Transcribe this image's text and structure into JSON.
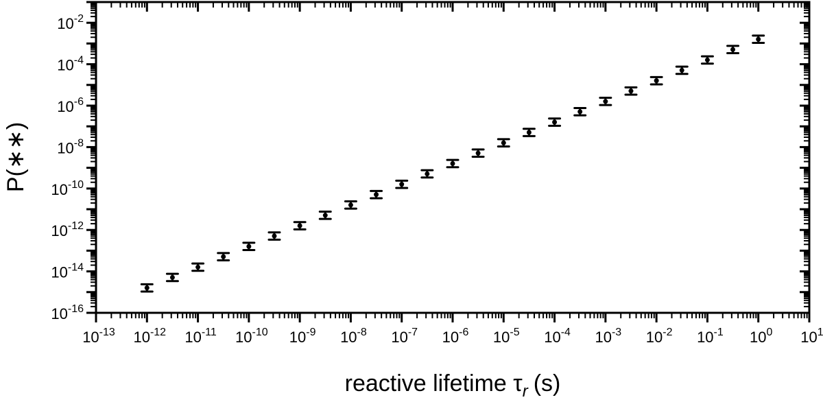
{
  "chart_data": {
    "type": "scatter",
    "xlabel": "reactive lifetime τ",
    "xlabel_subscript": "r",
    "xlabel_unit": "(s)",
    "ylabel": "P(∗∗)",
    "xscale": "log",
    "yscale": "log",
    "xlim": [
      1e-13,
      10
    ],
    "ylim": [
      1e-16,
      0.1
    ],
    "x_tick_exponents": [
      -13,
      -12,
      -11,
      -10,
      -9,
      -8,
      -7,
      -6,
      -5,
      -4,
      -3,
      -2,
      -1,
      0,
      1
    ],
    "y_tick_exponents": [
      -16,
      -14,
      -12,
      -10,
      -8,
      -6,
      -4,
      -2
    ],
    "grid": false,
    "marker_color": "#000000",
    "x": [
      1e-12,
      3.16e-12,
      1e-11,
      3.16e-11,
      1e-10,
      3.16e-10,
      1e-09,
      3.16e-09,
      1e-08,
      3.16e-08,
      1e-07,
      3.16e-07,
      1e-06,
      3.16e-06,
      1e-05,
      3.16e-05,
      0.0001,
      0.000316,
      0.001,
      0.00316,
      0.01,
      0.0316,
      0.1,
      0.316,
      1
    ],
    "y": [
      1.6e-15,
      5.1e-15,
      1.6e-14,
      5.1e-14,
      1.6e-13,
      5.1e-13,
      1.6e-12,
      5.1e-12,
      1.6e-11,
      5.1e-11,
      1.6e-10,
      5.1e-10,
      1.6e-09,
      5.1e-09,
      1.6e-08,
      5.1e-08,
      1.6e-07,
      5.1e-07,
      1.6e-06,
      5.1e-06,
      1.6e-05,
      5.1e-05,
      0.00016,
      0.00051,
      0.0016
    ],
    "yerr_factor": 1.5
  }
}
